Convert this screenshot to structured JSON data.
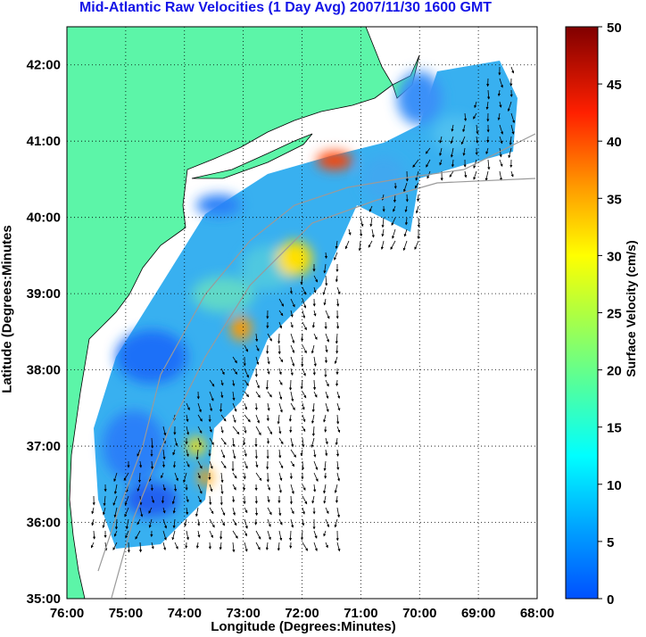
{
  "title": "Mid-Atlantic Raw Velocities (1 Day Avg) 2007/11/30 1600 GMT",
  "axes": {
    "xlabel": "Longitude (Degrees:Minutes)",
    "ylabel": "Latitude (Degrees:Minutes",
    "x_ticks": [
      "76:00",
      "75:00",
      "74:00",
      "73:00",
      "72:00",
      "71:00",
      "70:00",
      "69:00",
      "68:00"
    ],
    "y_ticks": [
      "42:00",
      "41:00",
      "40:00",
      "39:00",
      "38:00",
      "37:00",
      "36:00",
      "35:00"
    ],
    "x_range_deg_west": [
      76,
      68
    ],
    "y_range_deg_north": [
      35,
      42.5
    ],
    "grid": "dotted"
  },
  "colorbar": {
    "label": "Surface Velocity (cm/s)",
    "ticks": [
      "50",
      "45",
      "40",
      "35",
      "30",
      "25",
      "20",
      "15",
      "10",
      "5",
      "0"
    ],
    "min": 0,
    "max": 50,
    "colormap": "jet"
  },
  "colors": {
    "land": "#5cf5a8",
    "title": "#1414e6",
    "bathymetry": "#9a9a9a"
  }
}
